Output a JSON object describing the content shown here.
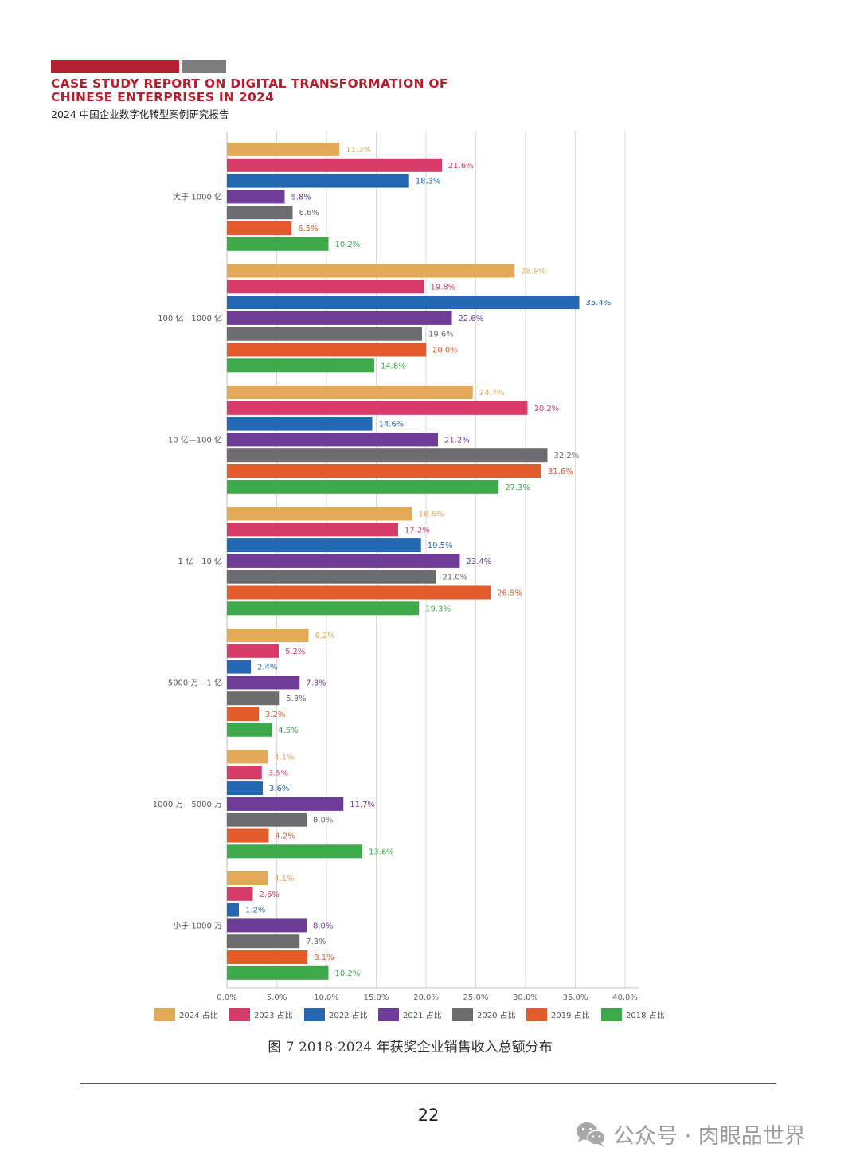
{
  "header": {
    "title": "CASE STUDY REPORT ON DIGITAL TRANSFORMATION OF CHINESE ENTERPRISES IN 2024",
    "subtitle": "2024 中国企业数字化转型案例研究报告"
  },
  "caption": "图 7  2018-2024 年获奖企业销售收入总额分布",
  "page_number": "22",
  "watermark": {
    "icon": "wechat-icon",
    "text": "公众号 · 肉眼品世界"
  },
  "chart_data": {
    "type": "bar",
    "orientation": "horizontal",
    "categories": [
      "大于 1000 亿",
      "100 亿—1000 亿",
      "10 亿—100 亿",
      "1 亿—10 亿",
      "5000 万—1 亿",
      "1000 万—5000 万",
      "小于 1000 万"
    ],
    "series": [
      {
        "name": "2024 占比",
        "color": "#e2a957",
        "values": [
          11.3,
          28.9,
          24.7,
          18.6,
          8.2,
          4.1,
          4.1
        ]
      },
      {
        "name": "2023 占比",
        "color": "#d63a67",
        "values": [
          21.6,
          19.8,
          30.2,
          17.2,
          5.2,
          3.5,
          2.6
        ]
      },
      {
        "name": "2022 占比",
        "color": "#2468b4",
        "values": [
          18.3,
          35.4,
          14.6,
          19.5,
          2.4,
          3.6,
          1.2
        ]
      },
      {
        "name": "2021 占比",
        "color": "#6e3b98",
        "values": [
          5.8,
          22.6,
          21.2,
          23.4,
          7.3,
          11.7,
          8.0
        ]
      },
      {
        "name": "2020 占比",
        "color": "#6d6d6f",
        "values": [
          6.6,
          19.6,
          32.2,
          21.0,
          5.3,
          8.0,
          7.3
        ]
      },
      {
        "name": "2019 占比",
        "color": "#e35a2b",
        "values": [
          6.5,
          20.0,
          31.6,
          26.5,
          3.2,
          4.2,
          8.1
        ]
      },
      {
        "name": "2018 占比",
        "color": "#3daa4a",
        "values": [
          10.2,
          14.8,
          27.3,
          19.3,
          4.5,
          13.6,
          10.2
        ]
      }
    ],
    "xlim": [
      0,
      40
    ],
    "xticks": [
      "0.0%",
      "5.0%",
      "10.0%",
      "15.0%",
      "20.0%",
      "25.0%",
      "30.0%",
      "35.0%",
      "40.0%"
    ],
    "value_suffix": "%",
    "grid": true,
    "legend_position": "bottom"
  }
}
